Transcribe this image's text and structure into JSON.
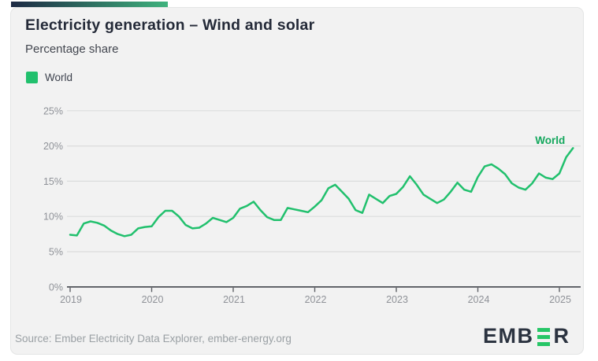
{
  "accent_bar": {
    "gradient_start": "#1d2a44",
    "gradient_end": "#3fb27d"
  },
  "header": {
    "title": "Electricity generation – Wind and solar",
    "subtitle": "Percentage share"
  },
  "legend": {
    "items": [
      {
        "label": "World",
        "color": "#21c06d"
      }
    ]
  },
  "chart_data": {
    "type": "line",
    "title": "Electricity generation – Wind and solar",
    "subtitle": "Percentage share",
    "unit": "percent share",
    "grid": "horizontal",
    "legend_position": "top-left",
    "ylim": [
      0,
      25
    ],
    "y_ticks": [
      {
        "value": 0,
        "label": "0%"
      },
      {
        "value": 5,
        "label": "5%"
      },
      {
        "value": 10,
        "label": "10%"
      },
      {
        "value": 15,
        "label": "15%"
      },
      {
        "value": 20,
        "label": "20%"
      },
      {
        "value": 25,
        "label": "25%"
      }
    ],
    "x_ticks": [
      {
        "year": 2019,
        "label": "2019"
      },
      {
        "year": 2020,
        "label": "2020"
      },
      {
        "year": 2021,
        "label": "2021"
      },
      {
        "year": 2022,
        "label": "2022"
      },
      {
        "year": 2023,
        "label": "2023"
      },
      {
        "year": 2024,
        "label": "2024"
      },
      {
        "year": 2025,
        "label": "2025"
      }
    ],
    "series": [
      {
        "name": "World",
        "end_label": "World",
        "color": "#21c06d",
        "end_label_color": "#14a75d",
        "start": "2019-01",
        "interval": "monthly",
        "values": [
          7.4,
          7.3,
          9.0,
          9.3,
          9.1,
          8.7,
          8.0,
          7.5,
          7.2,
          7.4,
          8.3,
          8.5,
          8.6,
          9.9,
          10.8,
          10.8,
          10.0,
          8.8,
          8.3,
          8.4,
          9.0,
          9.8,
          9.5,
          9.2,
          9.8,
          11.1,
          11.5,
          12.1,
          10.9,
          9.9,
          9.5,
          9.5,
          11.2,
          11.0,
          10.8,
          10.6,
          11.4,
          12.3,
          14.0,
          14.5,
          13.5,
          12.5,
          10.9,
          10.5,
          13.1,
          12.5,
          11.9,
          12.9,
          13.2,
          14.2,
          15.7,
          14.5,
          13.1,
          12.5,
          11.9,
          12.4,
          13.5,
          14.8,
          13.8,
          13.5,
          15.6,
          17.1,
          17.4,
          16.8,
          16.0,
          14.7,
          14.1,
          13.8,
          14.7,
          16.1,
          15.5,
          15.3,
          16.1,
          18.4,
          19.7
        ]
      }
    ],
    "colors": {
      "gridline": "#dbdcdc",
      "axis_line": "#43464c",
      "tick_mark": "#5d6065",
      "tick_label": "#8f9298"
    }
  },
  "footer": {
    "source": "Source: Ember Electricity Data Explorer, ember-energy.org",
    "logo": {
      "text_prefix": "EMB",
      "text_suffix": "R",
      "bar_color": "#27c667",
      "text_color": "#2b3340"
    }
  }
}
